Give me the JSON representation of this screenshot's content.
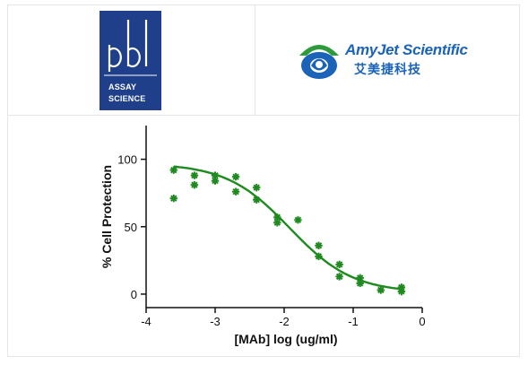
{
  "logos": {
    "left": {
      "brand": "pbl",
      "line1": "ASSAY",
      "line2": "SCIENCE"
    },
    "right": {
      "name": "AmyJet Scientific",
      "chinese": "艾美捷科技"
    }
  },
  "colors": {
    "series": "#1f8a1f",
    "pbl_blue": "#1f3f8a",
    "amyjet_blue": "#1a63b8",
    "amyjet_green": "#2e9a3c"
  },
  "chart_data": {
    "type": "scatter",
    "title": "",
    "xlabel": "[MAb] log (ug/ml)",
    "ylabel": "% Cell Protection",
    "xlim": [
      -4,
      0
    ],
    "ylim": [
      -10,
      125
    ],
    "xticks": [
      -4,
      -3,
      -2,
      -1,
      0
    ],
    "yticks": [
      0,
      50,
      100
    ],
    "grid": false,
    "legend": "none",
    "series": [
      {
        "points": [
          {
            "x": -3.6,
            "y": 92
          },
          {
            "x": -3.6,
            "y": 71
          },
          {
            "x": -3.3,
            "y": 88
          },
          {
            "x": -3.3,
            "y": 81
          },
          {
            "x": -3.0,
            "y": 88
          },
          {
            "x": -3.0,
            "y": 84
          },
          {
            "x": -2.7,
            "y": 87
          },
          {
            "x": -2.7,
            "y": 76
          },
          {
            "x": -2.4,
            "y": 79
          },
          {
            "x": -2.4,
            "y": 70
          },
          {
            "x": -2.1,
            "y": 57
          },
          {
            "x": -2.1,
            "y": 53
          },
          {
            "x": -1.8,
            "y": 55
          },
          {
            "x": -1.5,
            "y": 36
          },
          {
            "x": -1.5,
            "y": 28
          },
          {
            "x": -1.2,
            "y": 22
          },
          {
            "x": -1.2,
            "y": 13
          },
          {
            "x": -0.9,
            "y": 12
          },
          {
            "x": -0.9,
            "y": 8
          },
          {
            "x": -0.6,
            "y": 3
          },
          {
            "x": -0.3,
            "y": 5
          },
          {
            "x": -0.3,
            "y": 2
          }
        ],
        "fit": {
          "model": "sigmoidal",
          "top": 97,
          "bottom": 1,
          "log_ec50": -1.92,
          "hill_slope": -0.95,
          "x_range": [
            -3.6,
            -0.3
          ]
        }
      }
    ]
  }
}
